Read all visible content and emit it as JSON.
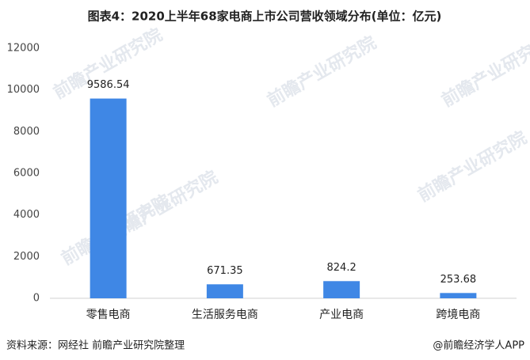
{
  "chart_data": {
    "type": "bar",
    "title": "图表4：2020上半年68家电商上市公司营收领域分布(单位：亿元)",
    "categories": [
      "零售电商",
      "生活服务电商",
      "产业电商",
      "跨境电商"
    ],
    "values": [
      9586.54,
      671.35,
      824.2,
      253.68
    ],
    "color": "#3f87e5",
    "ylim": [
      0,
      12000
    ],
    "yticks": [
      0,
      2000,
      4000,
      6000,
      8000,
      10000,
      12000
    ],
    "grid": false,
    "source": "资料来源：网经社 前瞻产业研究院整理",
    "credit": "@前瞻经济学人APP",
    "watermark": "前瞻产业研究院"
  }
}
